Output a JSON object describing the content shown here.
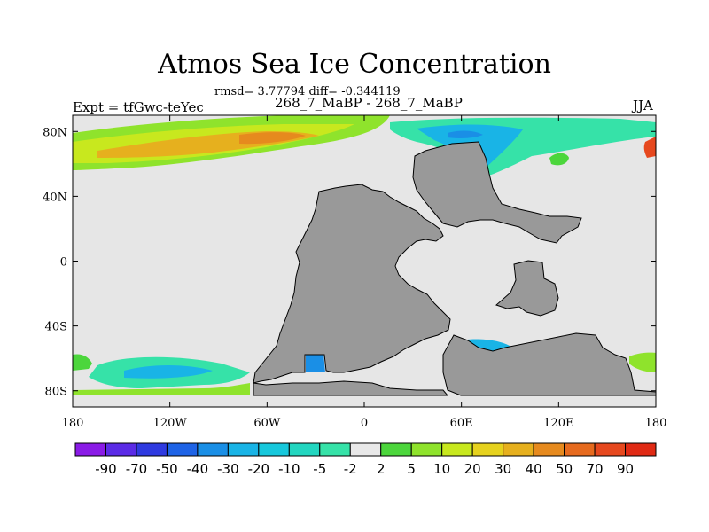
{
  "title": "Atmos Sea Ice Concentration",
  "stats": "rmsd= 3.77794 diff= -0.344119",
  "subtitle": "268_7_MaBP - 268_7_MaBP",
  "experiment": "Expt = tfGwc-teYec",
  "season": "JJA",
  "colors": {
    "ocean_bg": "#e6e6e6",
    "land": "#999999",
    "map_border": "#000000"
  },
  "map": {
    "x_ticks": [
      {
        "lon": -180,
        "label": "180"
      },
      {
        "lon": -120,
        "label": "120W"
      },
      {
        "lon": -60,
        "label": "60W"
      },
      {
        "lon": 0,
        "label": "0"
      },
      {
        "lon": 60,
        "label": "60E"
      },
      {
        "lon": 120,
        "label": "120E"
      },
      {
        "lon": 180,
        "label": "180"
      }
    ],
    "y_ticks": [
      {
        "lat": 80,
        "label": "80N"
      },
      {
        "lat": 40,
        "label": "40N"
      },
      {
        "lat": 0,
        "label": "0"
      },
      {
        "lat": -40,
        "label": "40S"
      },
      {
        "lat": -80,
        "label": "80S"
      }
    ],
    "lon_range": [
      -180,
      180
    ],
    "lat_range": [
      -90,
      90
    ]
  },
  "colorbar": {
    "labels": [
      "-90",
      "-70",
      "-50",
      "-40",
      "-30",
      "-20",
      "-10",
      "-5",
      "-2",
      "2",
      "5",
      "10",
      "20",
      "30",
      "40",
      "50",
      "70",
      "90"
    ],
    "colors": [
      "#8a1be6",
      "#5b2be6",
      "#2f3ae0",
      "#1e63e6",
      "#1a8fe6",
      "#19b4e6",
      "#17c8dc",
      "#22d6c0",
      "#36e2a8",
      "#e8e8e8",
      "#4cd63c",
      "#8fe32c",
      "#c8e81e",
      "#e6d21e",
      "#e6b01e",
      "#e68a1e",
      "#e66a1e",
      "#e6481e",
      "#e02a14"
    ]
  }
}
